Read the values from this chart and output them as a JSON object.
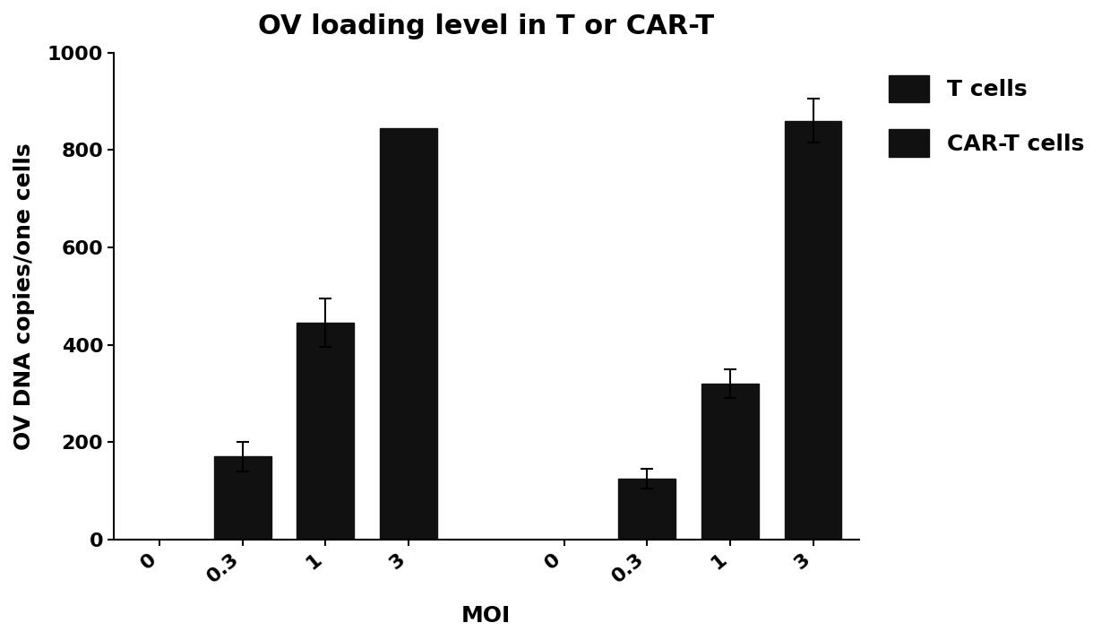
{
  "title": "OV loading level in T or CAR-T",
  "xlabel": "MOI",
  "ylabel": "OV DNA copies/one cells",
  "ylim": [
    0,
    1000
  ],
  "yticks": [
    0,
    200,
    400,
    600,
    800,
    1000
  ],
  "bar_color": "#111111",
  "background_color": "#ffffff",
  "groups": [
    "T cells",
    "CAR-T cells"
  ],
  "moi_labels": [
    "0",
    "0.3",
    "1",
    "3"
  ],
  "t_cells_values": [
    0,
    170,
    445,
    845
  ],
  "t_cells_errors": [
    0,
    30,
    50,
    0
  ],
  "cart_cells_values": [
    0,
    125,
    320,
    860
  ],
  "cart_cells_errors": [
    0,
    20,
    30,
    45
  ],
  "bar_width": 0.55,
  "title_fontsize": 22,
  "label_fontsize": 18,
  "tick_fontsize": 16,
  "legend_fontsize": 18
}
